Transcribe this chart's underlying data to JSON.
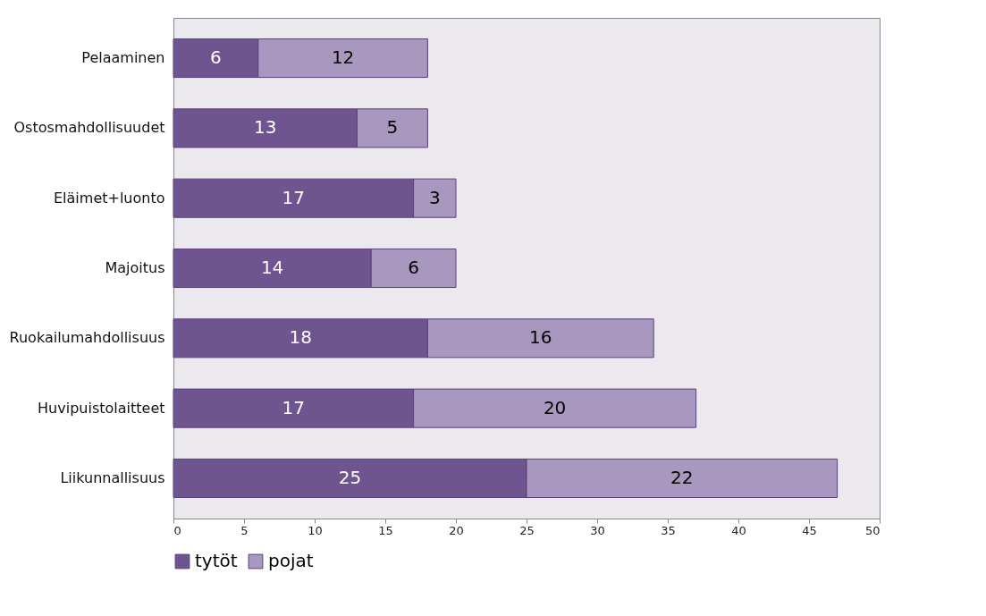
{
  "chart_data": {
    "type": "bar",
    "orientation": "horizontal",
    "stacked": true,
    "data_labels": true,
    "legend": "bottom",
    "grid": false,
    "categories": [
      "Pelaaminen",
      "Ostosmahdollisuudet",
      "Eläimet+luonto",
      "Majoitus",
      "Ruokailumahdollisuus",
      "Huvipuistolaitteet",
      "Liikunnallisuus"
    ],
    "series": [
      {
        "name": "tytöt",
        "color": "#6f5590",
        "values": [
          6,
          13,
          17,
          14,
          18,
          17,
          25
        ]
      },
      {
        "name": "pojat",
        "color": "#a897bf",
        "values": [
          12,
          5,
          3,
          6,
          16,
          20,
          22
        ]
      }
    ],
    "xlim": [
      0,
      50
    ],
    "xticks": [
      0,
      5,
      10,
      15,
      20,
      25,
      30,
      35,
      40,
      45,
      50
    ]
  }
}
